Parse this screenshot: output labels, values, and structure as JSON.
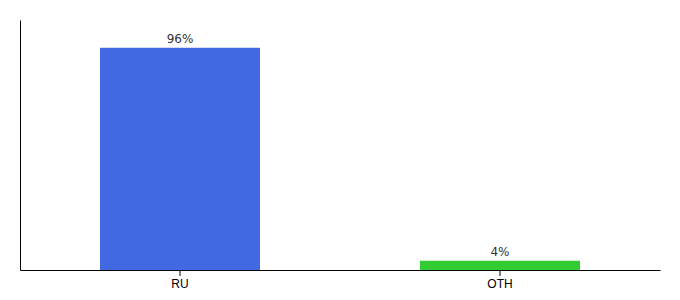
{
  "chart_data": {
    "type": "bar",
    "categories": [
      "RU",
      "OTH"
    ],
    "values": [
      96,
      4
    ],
    "value_labels": [
      "96%",
      "4%"
    ],
    "colors": [
      "#4169e1",
      "#33cc33"
    ],
    "ylim": [
      0,
      108
    ],
    "data_labels": true,
    "grid": false,
    "tick_labels": "x"
  }
}
